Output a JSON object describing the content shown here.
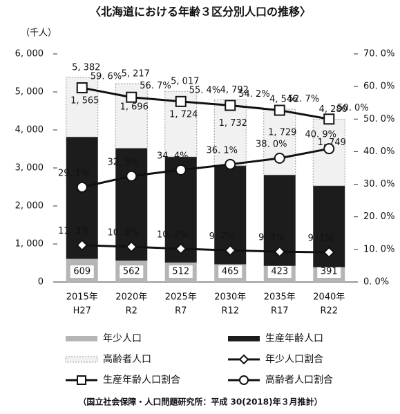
{
  "chart_data": {
    "type": "bar",
    "title": "〈北海道における年齢３区分別人口の推移〉",
    "y_label": "（千人）",
    "source": "（国立社会保障・人口問題研究所：平成 30(2018)年３月推計）",
    "categories": [
      "2015年",
      "2020年",
      "2025年",
      "2030年",
      "2035年",
      "2040年"
    ],
    "sub_categories": [
      "H27",
      "R2",
      "R7",
      "R12",
      "R17",
      "R22"
    ],
    "totals": [
      5382,
      5217,
      5017,
      4792,
      4546,
      4280
    ],
    "total_labels": [
      "5, 382",
      "5, 217",
      "5, 017",
      "4, 792",
      "4, 546",
      "4, 280"
    ],
    "ylim": [
      0,
      6000
    ],
    "yticks": [
      {
        "value": 0,
        "label": "0"
      },
      {
        "value": 1000,
        "label": "1, 000"
      },
      {
        "value": 2000,
        "label": "2, 000"
      },
      {
        "value": 3000,
        "label": "3, 000"
      },
      {
        "value": 4000,
        "label": "4, 000"
      },
      {
        "value": 5000,
        "label": "5, 000"
      },
      {
        "value": 6000,
        "label": "6, 000"
      }
    ],
    "y2lim": [
      0,
      70
    ],
    "y2ticks": [
      {
        "value": 0,
        "label": "0. 0%"
      },
      {
        "value": 10,
        "label": "10. 0%"
      },
      {
        "value": 20,
        "label": "20. 0%"
      },
      {
        "value": 30,
        "label": "30. 0%"
      },
      {
        "value": 40,
        "label": "40. 0%"
      },
      {
        "value": 50,
        "label": "50. 0%"
      },
      {
        "value": 60,
        "label": "60. 0%"
      },
      {
        "value": 70,
        "label": "70. 0%"
      }
    ],
    "series": [
      {
        "name": "年少人口",
        "type": "bar",
        "color": "#b5b5b5",
        "values": [
          609,
          562,
          512,
          465,
          423,
          391
        ]
      },
      {
        "name": "生産年齢人口",
        "type": "bar",
        "color": "#1c1c1c",
        "values": [
          3208,
          2959,
          2781,
          2595,
          2394,
          2140
        ]
      },
      {
        "name": "高齢者人口",
        "type": "bar",
        "color": "#f1f1f1",
        "values": [
          1565,
          1696,
          1724,
          1732,
          1729,
          1749
        ],
        "value_labels": [
          "1, 565",
          "1, 696",
          "1, 724",
          "1, 732",
          "1, 729",
          "1, 749"
        ]
      },
      {
        "name": "年少人口割合",
        "type": "line",
        "axis": "y2",
        "marker": "diamond",
        "color": "#111111",
        "values": [
          11.3,
          10.8,
          10.2,
          9.7,
          9.3,
          9.1
        ],
        "value_labels": [
          "11. 3%",
          "10. 8%",
          "10. 2%",
          "9. 7%",
          "9. 3%",
          "9. 1%"
        ]
      },
      {
        "name": "生産年齢人口割合",
        "type": "line",
        "axis": "y2",
        "marker": "square",
        "color": "#111111",
        "values": [
          59.6,
          56.7,
          55.4,
          54.2,
          52.7,
          50.0
        ],
        "value_labels": [
          "59. 6%",
          "56. 7%",
          "55. 4%",
          "54. 2%",
          "52. 7%",
          "50. 0%"
        ]
      },
      {
        "name": "高齢者人口割合",
        "type": "line",
        "axis": "y2",
        "marker": "circle",
        "color": "#111111",
        "values": [
          29.1,
          32.5,
          34.4,
          36.1,
          38.0,
          40.9
        ],
        "value_labels": [
          "29. 1%",
          "32. 5%",
          "34. 4%",
          "36. 1%",
          "38. 0%",
          "40. 9%"
        ]
      }
    ]
  }
}
